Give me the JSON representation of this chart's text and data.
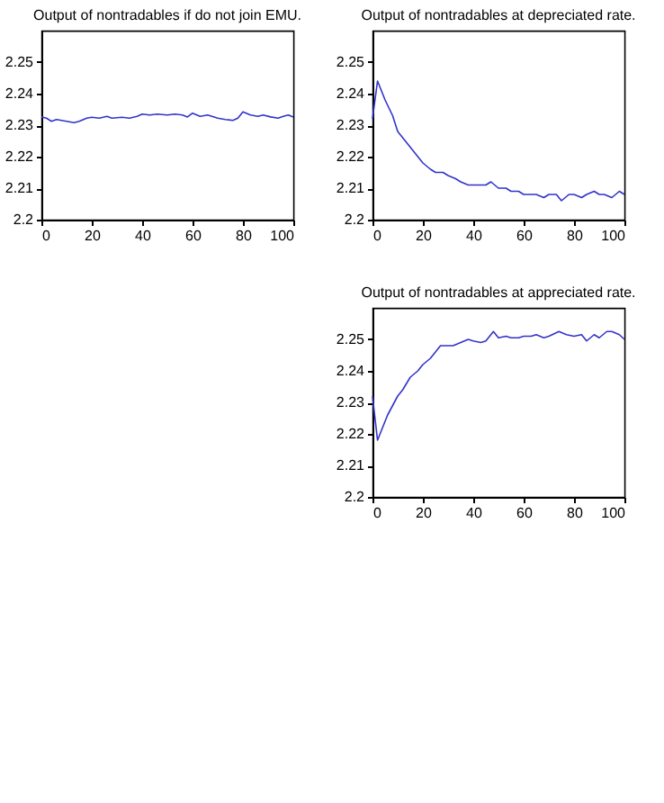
{
  "chart_data": [
    {
      "type": "line",
      "title": "Output of nontradables if do not join EMU.",
      "xlim": [
        0,
        100
      ],
      "xticks": [
        0,
        20,
        40,
        60,
        80,
        100
      ],
      "ylim": [
        2.2,
        2.26
      ],
      "yticks": [
        2.2,
        2.21,
        2.22,
        2.23,
        2.24,
        2.25
      ],
      "grid": false,
      "series": [
        {
          "color": "#3333cc",
          "x": [
            0,
            2,
            4,
            6,
            8,
            10,
            13,
            15,
            18,
            20,
            23,
            26,
            28,
            32,
            35,
            38,
            40,
            43,
            46,
            50,
            53,
            56,
            58,
            60,
            63,
            66,
            70,
            73,
            76,
            78,
            80,
            83,
            86,
            88,
            91,
            94,
            96,
            98,
            100
          ],
          "values": [
            2.2326,
            2.2322,
            2.2312,
            2.2318,
            2.2315,
            2.2312,
            2.2308,
            2.2312,
            2.2322,
            2.2325,
            2.2322,
            2.2328,
            2.2322,
            2.2325,
            2.2322,
            2.2328,
            2.2335,
            2.2332,
            2.2335,
            2.2332,
            2.2335,
            2.2332,
            2.2326,
            2.2338,
            2.2328,
            2.2332,
            2.2322,
            2.2318,
            2.2315,
            2.2322,
            2.2342,
            2.2332,
            2.2328,
            2.2332,
            2.2326,
            2.2322,
            2.2328,
            2.2332,
            2.2326
          ]
        }
      ]
    },
    {
      "type": "line",
      "title": "Output of nontradables at depreciated rate.",
      "xlim": [
        0,
        100
      ],
      "xticks": [
        0,
        20,
        40,
        60,
        80,
        100
      ],
      "ylim": [
        2.2,
        2.26
      ],
      "yticks": [
        2.2,
        2.21,
        2.22,
        2.23,
        2.24,
        2.25
      ],
      "grid": false,
      "series": [
        {
          "color": "#3333cc",
          "x": [
            0,
            2,
            5,
            8,
            10,
            13,
            15,
            18,
            20,
            23,
            25,
            28,
            30,
            33,
            35,
            38,
            40,
            43,
            45,
            47,
            50,
            53,
            55,
            58,
            60,
            63,
            65,
            68,
            70,
            73,
            75,
            78,
            80,
            83,
            85,
            88,
            90,
            92,
            95,
            98,
            100
          ],
          "values": [
            2.232,
            2.244,
            2.238,
            2.233,
            2.228,
            2.225,
            2.223,
            2.22,
            2.218,
            2.216,
            2.215,
            2.215,
            2.214,
            2.213,
            2.212,
            2.211,
            2.211,
            2.211,
            2.211,
            2.212,
            2.21,
            2.21,
            2.209,
            2.209,
            2.208,
            2.208,
            2.208,
            2.207,
            2.208,
            2.208,
            2.206,
            2.208,
            2.208,
            2.207,
            2.208,
            2.209,
            2.208,
            2.208,
            2.207,
            2.209,
            2.208
          ]
        }
      ]
    },
    {
      "type": "line",
      "title": "Output of nontradables at appreciated rate.",
      "xlim": [
        0,
        100
      ],
      "xticks": [
        0,
        20,
        40,
        60,
        80,
        100
      ],
      "ylim": [
        2.2,
        2.26
      ],
      "yticks": [
        2.2,
        2.21,
        2.22,
        2.23,
        2.24,
        2.25
      ],
      "grid": false,
      "series": [
        {
          "color": "#3333cc",
          "x": [
            0,
            2,
            4,
            6,
            8,
            10,
            12,
            15,
            18,
            20,
            23,
            25,
            27,
            30,
            32,
            35,
            38,
            40,
            43,
            45,
            48,
            50,
            53,
            55,
            58,
            60,
            63,
            65,
            68,
            70,
            74,
            77,
            80,
            83,
            85,
            88,
            90,
            93,
            95,
            98,
            100
          ],
          "values": [
            2.232,
            2.218,
            2.222,
            2.226,
            2.229,
            2.232,
            2.234,
            2.238,
            2.24,
            2.242,
            2.244,
            2.246,
            2.248,
            2.248,
            2.248,
            2.249,
            2.25,
            2.2495,
            2.249,
            2.2495,
            2.2525,
            2.2505,
            2.251,
            2.2505,
            2.2505,
            2.251,
            2.251,
            2.2515,
            2.2505,
            2.251,
            2.2525,
            2.2515,
            2.251,
            2.2515,
            2.2495,
            2.2515,
            2.2505,
            2.2525,
            2.2525,
            2.2515,
            2.25
          ]
        }
      ]
    }
  ]
}
